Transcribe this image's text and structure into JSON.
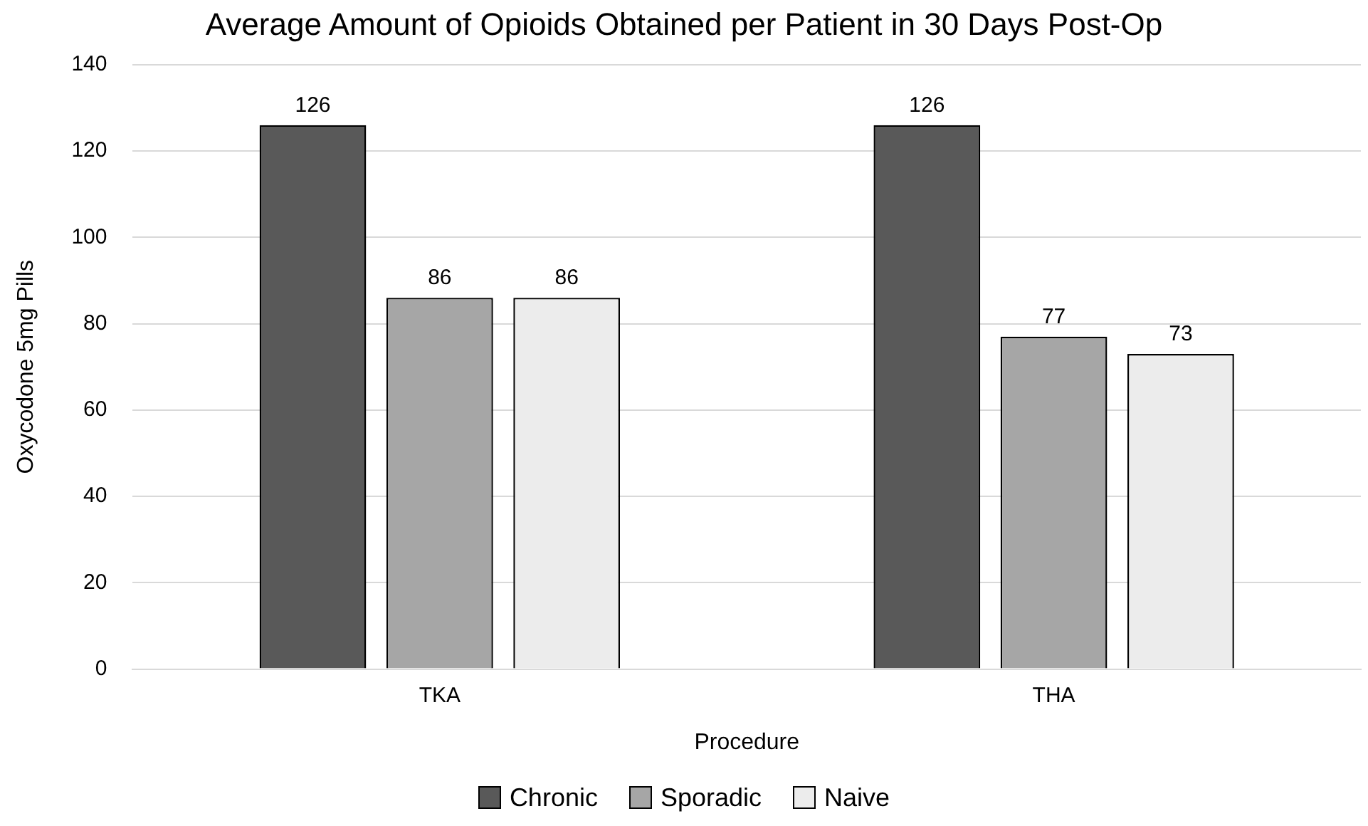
{
  "chart_data": {
    "type": "bar",
    "title": "Average Amount of Opioids Obtained per Patient in 30 Days Post-Op",
    "xlabel": "Procedure",
    "ylabel": "Oxycodone 5mg Pills",
    "categories": [
      "TKA",
      "THA"
    ],
    "series": [
      {
        "name": "Chronic",
        "color": "#595959",
        "values": [
          126,
          126
        ]
      },
      {
        "name": "Sporadic",
        "color": "#a6a6a6",
        "values": [
          86,
          77
        ]
      },
      {
        "name": "Naive",
        "color": "#ececec",
        "values": [
          86,
          73
        ]
      }
    ],
    "ylim": [
      0,
      140
    ],
    "yticks": [
      0,
      20,
      40,
      60,
      80,
      100,
      120,
      140
    ],
    "grid": "y",
    "legend": "bottom",
    "data_labels": true
  }
}
